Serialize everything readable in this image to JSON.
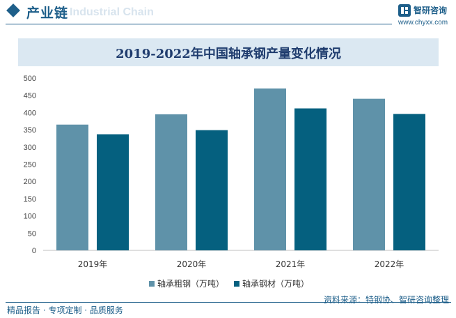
{
  "header": {
    "title": "产业链",
    "watermark_text": "Industrial Chain"
  },
  "brand": {
    "name": "智研咨询",
    "url": "www.chyxx.com"
  },
  "footer": {
    "tagline": "精品报告 · 专项定制 · 品质服务",
    "source": "资料来源：特钢协、智研咨询整理"
  },
  "colors": {
    "series1": "#5f92a9",
    "series2": "#05607f",
    "brand": "#1e5f8a"
  },
  "chart_data": {
    "type": "bar",
    "title": "2019-2022年中国轴承钢产量变化情况",
    "categories": [
      "2019年",
      "2020年",
      "2021年",
      "2022年"
    ],
    "series": [
      {
        "name": "轴承粗钢（万吨）",
        "values": [
          365,
          395,
          470,
          440
        ]
      },
      {
        "name": "轴承钢材（万吨）",
        "values": [
          337,
          349,
          412,
          396
        ]
      }
    ],
    "ylim": [
      0,
      500
    ],
    "yticks": [
      0,
      50,
      100,
      150,
      200,
      250,
      300,
      350,
      400,
      450,
      500
    ],
    "xlabel": "",
    "ylabel": "",
    "legend_position": "bottom",
    "grid": false
  }
}
